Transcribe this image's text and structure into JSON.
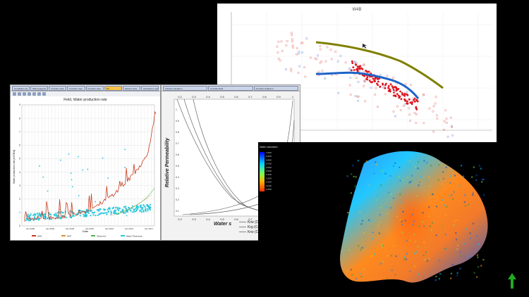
{
  "w4b_chart": {
    "title": "W4B",
    "colors": {
      "series_a": "#808000",
      "series_b": "#e0141e",
      "series_c": "#1e64c8",
      "scatter_red": "#e87878",
      "scatter_blue": "#7896dc"
    }
  },
  "water_chart": {
    "tabs": [
      "Correlation (1)",
      "Well sequence",
      "Function view",
      "Function view",
      "Function view",
      "Oil...",
      "Seismic view",
      "Intersection view"
    ],
    "active_tab": 5,
    "title": "Field, Water production rate",
    "ylabel": "Water production rate [kSTB/d]",
    "xlabel": "Date",
    "yticks": [
      "0",
      "1",
      "2",
      "3",
      "4",
      "5",
      "6",
      "7",
      "8",
      "9"
    ],
    "xticks": [
      "Jan 2000",
      "Jan 2002",
      "Jan 2004",
      "Jan 2007",
      "Jan 2010",
      "Jan 2014",
      "Jan 2017"
    ],
    "legend": [
      "HM1",
      "HM7",
      "Observed",
      "Water Production"
    ],
    "colors": {
      "hm1": "#c83c1e",
      "hm7": "#e08c32",
      "observed": "#50b450",
      "water_production": "#28c8dc"
    }
  },
  "relperm_chart": {
    "tabs": [
      "Function window 1",
      "Function fluid",
      "Function window 2"
    ],
    "xticks": [
      "0.2",
      "0.3",
      "0.4",
      "0.5",
      "0.6",
      "0.7",
      "0.8",
      "0.9",
      "1"
    ],
    "yticks": [
      "0.1",
      "0.2",
      "0.3",
      "0.4",
      "0.5",
      "0.6",
      "0.7",
      "0.8",
      "0.9",
      "1"
    ],
    "ylabel": "Relative Permeability",
    "xlabel": "Water s",
    "legend": [
      "Krw (Co",
      "Krg (Co",
      "Krw (Co"
    ]
  },
  "reservoir_view": {
    "colorbar_title": "Water saturation",
    "colorbar_values": [
      "1.0000",
      "0.9000",
      "0.8000",
      "0.7000",
      "0.6000",
      "0.5000",
      "0.4000",
      "0.3000",
      "0.2000",
      "0.1000",
      "0.0000"
    ]
  },
  "nav": {
    "arrow_icon": "up-arrow-icon",
    "arrow_color": "#22aa22"
  }
}
